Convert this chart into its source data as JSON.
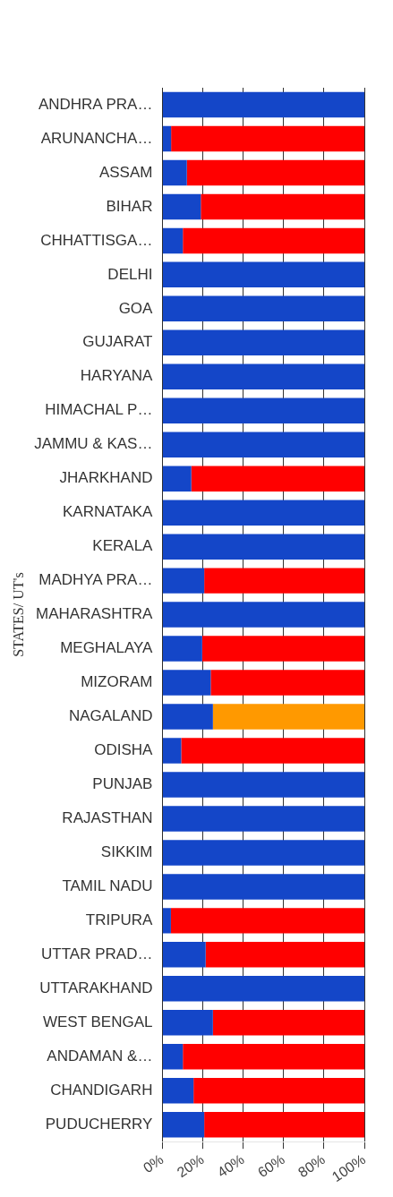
{
  "chart_data": {
    "type": "bar",
    "orientation": "horizontal",
    "stacked": true,
    "ylabel": "STATES/ UT's",
    "categories": [
      "ANDHRA PRA…",
      "ARUNANCHA…",
      "ASSAM",
      "BIHAR",
      "CHHATTISGA…",
      "DELHI",
      "GOA",
      "GUJARAT",
      "HARYANA",
      "HIMACHAL P…",
      "JAMMU & KAS…",
      "JHARKHAND",
      "KARNATAKA",
      "KERALA",
      "MADHYA PRA…",
      "MAHARASHTRA",
      "MEGHALAYA",
      "MIZORAM",
      "NAGALAND",
      "ODISHA",
      "PUNJAB",
      "RAJASTHAN",
      "SIKKIM",
      "TAMIL NADU",
      "TRIPURA",
      "UTTAR PRAD…",
      "UTTARAKHAND",
      "WEST BENGAL",
      "ANDAMAN &…",
      "CHANDIGARH",
      "PUDUCHERRY"
    ],
    "series": [
      {
        "color": "#1446c8",
        "values": [
          100,
          4.3,
          12.1,
          19,
          10.1,
          100,
          100,
          100,
          100,
          100,
          100,
          14.3,
          100,
          100,
          20.7,
          100,
          19.7,
          23.9,
          25,
          9.3,
          100,
          100,
          100,
          100,
          4.2,
          21.4,
          100,
          25,
          10.1,
          15.4,
          20.7
        ]
      },
      {
        "color": "#ff0000",
        "values": [
          null,
          95.7,
          87.9,
          81,
          89.9,
          null,
          null,
          null,
          null,
          null,
          null,
          85.7,
          null,
          null,
          79.3,
          null,
          80.3,
          76.1,
          null,
          90.7,
          null,
          null,
          null,
          null,
          95.8,
          78.6,
          null,
          75,
          89.9,
          84.6,
          79.3
        ]
      },
      {
        "color": "#ff9900",
        "values": [
          null,
          null,
          null,
          null,
          null,
          null,
          null,
          null,
          null,
          null,
          null,
          null,
          null,
          null,
          null,
          null,
          null,
          null,
          75,
          null,
          null,
          null,
          null,
          null,
          null,
          null,
          null,
          null,
          null,
          null,
          null
        ]
      }
    ],
    "xlim": [
      0,
      100
    ],
    "xticks": [
      {
        "value": 0,
        "label": "0%"
      },
      {
        "value": 20,
        "label": "20%"
      },
      {
        "value": 40,
        "label": "40%"
      },
      {
        "value": 60,
        "label": "60%"
      },
      {
        "value": 80,
        "label": "80%"
      },
      {
        "value": 100,
        "label": "100%"
      }
    ],
    "grid": "x",
    "legend": false
  }
}
